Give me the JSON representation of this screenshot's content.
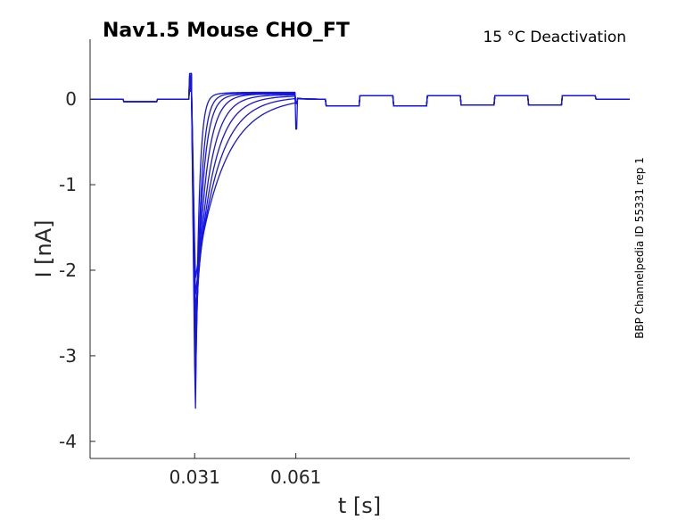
{
  "chart_data": {
    "type": "line",
    "title": "Nav1.5  Mouse  CHO_FT",
    "subtitle": "15 °C  Deactivation",
    "side_label": "BBP Channelpedia ID 55331 rep 1",
    "xlabel": "t [s]",
    "ylabel": "I [nA]",
    "xlim": [
      0.0,
      0.16
    ],
    "ylim": [
      -4.2,
      0.7
    ],
    "x_ticks": [
      0.031,
      0.061
    ],
    "x_tick_labels": [
      "0.031",
      "0.061"
    ],
    "y_ticks": [
      0,
      -1,
      -2,
      -3,
      -4
    ],
    "y_tick_labels": [
      "0",
      "-1",
      "-2",
      "-3",
      "-4"
    ],
    "grid": false,
    "line_color": "#1515e6",
    "peak_time_s": 0.0312,
    "step_end_s": 0.061,
    "series": [
      {
        "peak_current": -3.8,
        "decay_tau_s": 0.001,
        "tail_amplitude": 0.08
      },
      {
        "peak_current": -3.5,
        "decay_tau_s": 0.0015,
        "tail_amplitude": 0.07
      },
      {
        "peak_current": -3.2,
        "decay_tau_s": 0.002,
        "tail_amplitude": 0.06
      },
      {
        "peak_current": -2.9,
        "decay_tau_s": 0.0028,
        "tail_amplitude": 0.06
      },
      {
        "peak_current": -2.7,
        "decay_tau_s": 0.0038,
        "tail_amplitude": 0.05
      },
      {
        "peak_current": -2.5,
        "decay_tau_s": 0.005,
        "tail_amplitude": 0.04
      },
      {
        "peak_current": -2.3,
        "decay_tau_s": 0.0065,
        "tail_amplitude": 0.03
      },
      {
        "peak_current": -2.1,
        "decay_tau_s": 0.0085,
        "tail_amplitude": 0.02
      }
    ]
  }
}
